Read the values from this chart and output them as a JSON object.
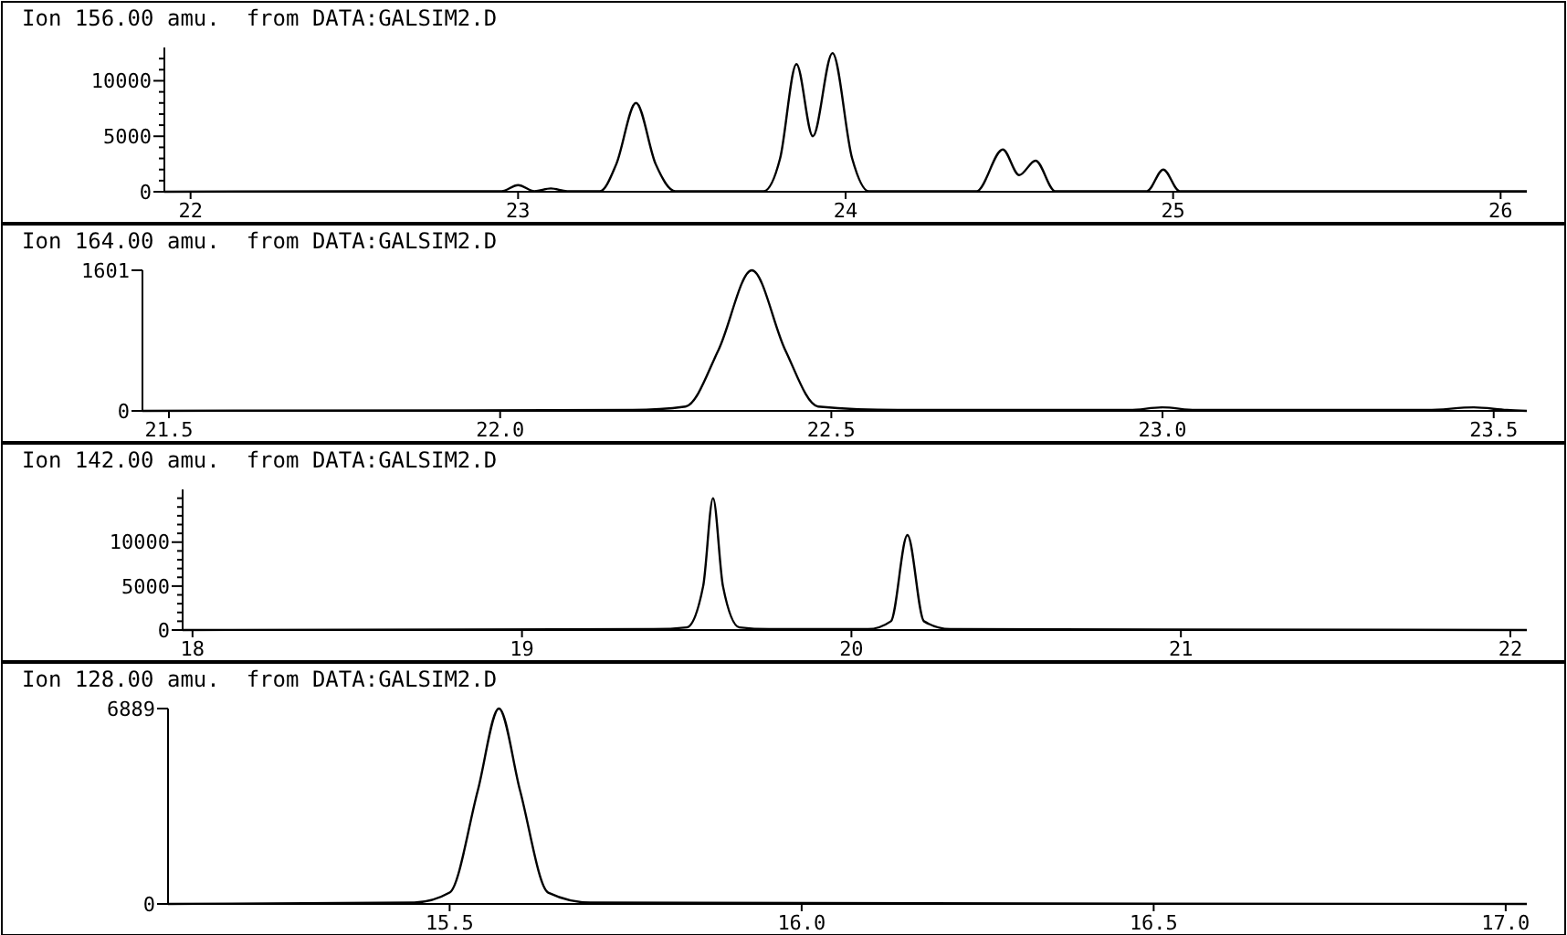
{
  "chart_data": [
    {
      "type": "line",
      "title": "Ion 156.00 amu.  from DATA:GALSIM2.D",
      "color": "#000000",
      "x": [
        21.92,
        22.5,
        22.95,
        23.0,
        23.05,
        23.1,
        23.15,
        23.25,
        23.3,
        23.36,
        23.42,
        23.48,
        23.75,
        23.8,
        23.85,
        23.9,
        23.96,
        24.02,
        24.07,
        24.4,
        24.48,
        24.53,
        24.58,
        24.64,
        24.92,
        24.97,
        25.02,
        26.08
      ],
      "values": [
        0,
        50,
        50,
        600,
        50,
        300,
        50,
        50,
        2500,
        8000,
        2500,
        50,
        50,
        3000,
        11500,
        5000,
        12500,
        3000,
        50,
        50,
        3800,
        1500,
        2800,
        50,
        50,
        2000,
        50,
        50
      ],
      "xlim": [
        21.92,
        26.08
      ],
      "ylim": [
        0,
        13000
      ],
      "xticks": [
        22,
        23,
        24,
        25,
        26
      ],
      "yticks": [
        0,
        {
          "value": 1000,
          "label": null
        },
        {
          "value": 2000,
          "label": null
        },
        {
          "value": 3000,
          "label": null
        },
        {
          "value": 4000,
          "label": null
        },
        5000,
        {
          "value": 6000,
          "label": null
        },
        {
          "value": 7000,
          "label": null
        },
        {
          "value": 8000,
          "label": null
        },
        {
          "value": 9000,
          "label": null
        },
        10000,
        {
          "value": 11000,
          "label": null
        },
        {
          "value": 12000,
          "label": null
        }
      ]
    },
    {
      "type": "line",
      "title": "Ion 164.00 amu.  from DATA:GALSIM2.D",
      "color": "#000000",
      "x": [
        21.46,
        22.2,
        22.28,
        22.33,
        22.38,
        22.43,
        22.48,
        22.6,
        22.95,
        23.0,
        23.05,
        23.4,
        23.47,
        23.52,
        23.55
      ],
      "values": [
        0,
        10,
        50,
        700,
        1601,
        700,
        50,
        10,
        10,
        40,
        10,
        10,
        40,
        10,
        0
      ],
      "xlim": [
        21.46,
        23.55
      ],
      "ylim": [
        0,
        1601
      ],
      "xticks": [
        21.5,
        {
          "value": 22,
          "label": "22.0"
        },
        22.5,
        {
          "value": 23,
          "label": "23.0"
        },
        23.5
      ],
      "yticks": [
        0,
        1601
      ]
    },
    {
      "type": "line",
      "title": "Ion 142.00 amu.  from DATA:GALSIM2.D",
      "color": "#000000",
      "x": [
        17.97,
        19.4,
        19.5,
        19.55,
        19.58,
        19.61,
        19.66,
        19.75,
        20.05,
        20.12,
        20.17,
        20.22,
        20.3,
        22.05
      ],
      "values": [
        0,
        100,
        300,
        5000,
        15000,
        5000,
        300,
        100,
        100,
        1000,
        10800,
        1000,
        100,
        0
      ],
      "xlim": [
        17.97,
        22.05
      ],
      "ylim": [
        0,
        16000
      ],
      "xticks": [
        18,
        19,
        20,
        21,
        22
      ],
      "yticks": [
        0,
        {
          "value": 1000,
          "label": null
        },
        {
          "value": 2000,
          "label": null
        },
        {
          "value": 3000,
          "label": null
        },
        {
          "value": 4000,
          "label": null
        },
        5000,
        {
          "value": 6000,
          "label": null
        },
        {
          "value": 7000,
          "label": null
        },
        {
          "value": 8000,
          "label": null
        },
        {
          "value": 9000,
          "label": null
        },
        10000,
        {
          "value": 11000,
          "label": null
        },
        {
          "value": 12000,
          "label": null
        },
        {
          "value": 13000,
          "label": null
        },
        {
          "value": 14000,
          "label": null
        },
        {
          "value": 15000,
          "label": null
        }
      ]
    },
    {
      "type": "line",
      "title": "Ion 128.00 amu.  from DATA:GALSIM2.D",
      "color": "#000000",
      "x": [
        15.1,
        15.45,
        15.5,
        15.54,
        15.57,
        15.6,
        15.64,
        15.7,
        17.03
      ],
      "values": [
        0,
        50,
        400,
        4000,
        6889,
        4000,
        400,
        50,
        0
      ],
      "xlim": [
        15.1,
        17.03
      ],
      "ylim": [
        0,
        6889
      ],
      "xticks": [
        15.5,
        {
          "value": 16,
          "label": "16.0"
        },
        16.5,
        {
          "value": 17,
          "label": "17.0"
        }
      ],
      "yticks": [
        0,
        6889
      ]
    }
  ]
}
